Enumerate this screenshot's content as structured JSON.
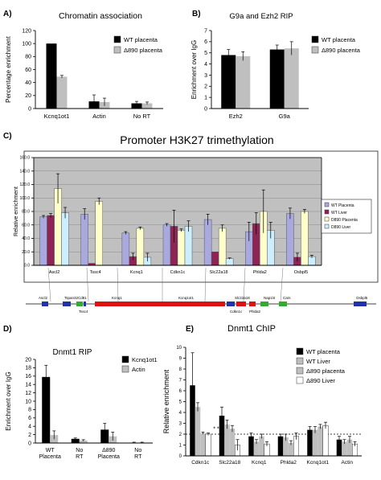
{
  "figure": {
    "colors": {
      "black": "#000000",
      "gray": "#bfbfbf",
      "white": "#ffffff",
      "wtPlacenta": "#a9a9e0",
      "wtLiver": "#8e2455",
      "d890Placenta": "#ffffcc",
      "d890Liver": "#cceeff",
      "plotBg": "#c0c0c0",
      "geneRed": "#dd1111",
      "geneBlue": "#2233aa",
      "geneGreen": "#33aa33"
    }
  },
  "chart_data": [
    {
      "panel": "A)",
      "type": "bar",
      "title": "Chromatin association",
      "ylabel": "Percentage enrichment",
      "ylim": [
        0,
        120
      ],
      "yticks": [
        0,
        20,
        40,
        60,
        80,
        100,
        120
      ],
      "categories": [
        "Kcnq1ot1",
        "Actin",
        "No RT"
      ],
      "legend": "top-right",
      "series": [
        {
          "name": "WT placenta",
          "color": "black",
          "values": [
            100,
            11,
            8
          ],
          "errors": [
            0,
            10,
            3
          ]
        },
        {
          "name": "Δ890 placenta",
          "color": "gray",
          "values": [
            49,
            10,
            8
          ],
          "errors": [
            2,
            6,
            2
          ]
        }
      ]
    },
    {
      "panel": "B)",
      "type": "bar",
      "title": "G9a and Ezh2 RIP",
      "ylabel": "Enrichment over IgG",
      "ylim": [
        0,
        7
      ],
      "yticks": [
        0,
        1,
        2,
        3,
        4,
        5,
        6,
        7
      ],
      "categories": [
        "Ezh2",
        "G9a"
      ],
      "legend": "top-right",
      "series": [
        {
          "name": "WT placenta",
          "color": "black",
          "values": [
            4.8,
            5.3
          ],
          "errors": [
            0.5,
            0.4
          ]
        },
        {
          "name": "Δ890 placenta",
          "color": "gray",
          "values": [
            4.7,
            5.4
          ],
          "errors": [
            0.4,
            0.6
          ]
        }
      ]
    },
    {
      "panel": "C)",
      "type": "bar",
      "title": "Promoter H3K27 trimethylation",
      "ylabel": "Relative enrichment",
      "ylim": [
        0,
        160
      ],
      "yticks": [
        "0.0",
        "20.0",
        "40.0",
        "60.0",
        "80.0",
        "100.0",
        "120.0",
        "140.0",
        "160.0"
      ],
      "grid": true,
      "categories": [
        "Ascl2",
        "Tssc4",
        "Kcnq1",
        "Cdkn1c",
        "Slc22a18",
        "Phlda2",
        "Osbpl5"
      ],
      "legend": "right",
      "series": [
        {
          "name": "WT Placenta",
          "color": "wtPlacenta",
          "values": [
            72,
            76,
            48,
            60,
            68,
            50,
            77
          ],
          "errors": [
            2,
            8,
            2,
            2,
            8,
            14,
            8
          ]
        },
        {
          "name": "WT Liver",
          "color": "wtLiver",
          "values": [
            74,
            3,
            13,
            58,
            20,
            62,
            12
          ],
          "errors": [
            3,
            0,
            5,
            24,
            0,
            16,
            6
          ]
        },
        {
          "name": "D890 Placenta",
          "color": "d890Placenta",
          "values": [
            114,
            95,
            55,
            52,
            55,
            80,
            80
          ],
          "errors": [
            22,
            5,
            2,
            2,
            5,
            32,
            3
          ]
        },
        {
          "name": "D890 Liver",
          "color": "d890Liver",
          "values": [
            78,
            0,
            12,
            58,
            10,
            52,
            13
          ],
          "errors": [
            8,
            0,
            6,
            8,
            1,
            12,
            2
          ]
        }
      ],
      "gene_map": {
        "labels_top": [
          "Ascl2",
          "Tspan32",
          "Cd81",
          "Kcnq1",
          "Kcnq1ot1",
          "Slc22a18",
          "Nap1l4",
          "Cars",
          "Osbpl5"
        ],
        "labels_bottom": [
          "Tssc4",
          "Cdkn1c",
          "Phlda2"
        ]
      }
    },
    {
      "panel": "D)",
      "type": "bar",
      "title": "Dnmt1 RIP",
      "ylabel": "Enrichment over IgG",
      "ylim": [
        0,
        20
      ],
      "yticks": [
        0,
        2,
        4,
        6,
        8,
        10,
        12,
        14,
        16,
        18,
        20
      ],
      "categories": [
        "WT Placenta",
        "No RT",
        "Δ890 Placenta",
        "No RT"
      ],
      "legend": "top-right",
      "series": [
        {
          "name": "Kcnq1ot1",
          "color": "black",
          "values": [
            15.8,
            1.0,
            3.2,
            0.1
          ],
          "errors": [
            2.8,
            0.2,
            1.5,
            0.1
          ]
        },
        {
          "name": "Actin",
          "color": "gray",
          "values": [
            1.9,
            0.6,
            1.6,
            0.1
          ],
          "errors": [
            1.0,
            0.2,
            1.0,
            0.1
          ]
        }
      ]
    },
    {
      "panel": "E)",
      "type": "bar",
      "title": "Dnmt1 ChIP",
      "ylabel": "Relative enrichment",
      "ylim": [
        0,
        10
      ],
      "yticks": [
        0,
        1,
        2,
        3,
        4,
        5,
        6,
        7,
        8,
        9,
        10
      ],
      "reference_line": 2,
      "annotation": "* *",
      "categories": [
        "Cdkn1c",
        "Slc22a18",
        "Kcnq1",
        "Phlda2",
        "Kcnq1ot1",
        "Actin"
      ],
      "legend": "top-right",
      "series": [
        {
          "name": "WT placenta",
          "color": "black",
          "values": [
            6.5,
            3.7,
            1.8,
            1.8,
            2.4,
            1.5
          ],
          "errors": [
            3.0,
            0.8,
            0.3,
            0.2,
            0.3,
            0.3
          ]
        },
        {
          "name": "WT Liver",
          "color": "gray",
          "values": [
            4.5,
            2.9,
            1.3,
            1.7,
            2.4,
            1.3
          ],
          "errors": [
            0.4,
            0.4,
            0.2,
            0.3,
            0.3,
            0.2
          ]
        },
        {
          "name": "Δ890 placenta",
          "color": "gray",
          "values": [
            2.1,
            2.5,
            1.8,
            1.2,
            2.7,
            1.5
          ],
          "errors": [
            0.1,
            0.3,
            0.2,
            0.2,
            0.2,
            0.3
          ]
        },
        {
          "name": "Δ890 Liver",
          "color": "white",
          "values": [
            2.0,
            1.0,
            1.1,
            1.8,
            2.8,
            1.1
          ],
          "errors": [
            0.1,
            0.5,
            0.2,
            0.3,
            0.3,
            0.2
          ]
        }
      ]
    }
  ]
}
